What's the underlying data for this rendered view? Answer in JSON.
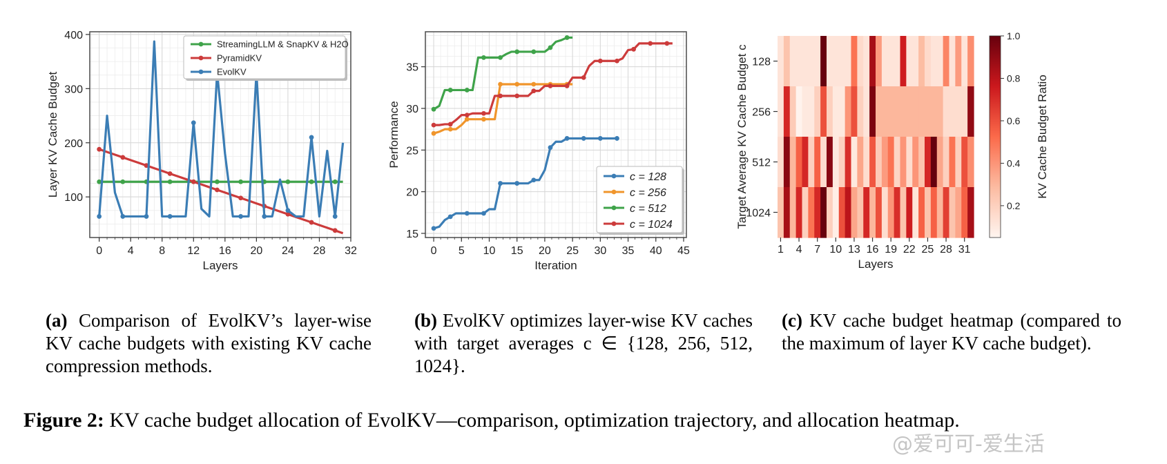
{
  "chart_data": [
    {
      "id": "a",
      "type": "line",
      "xlabel": "Layers",
      "ylabel": "Layer KV Cache Budget",
      "xlim": [
        -1.2,
        32
      ],
      "ylim": [
        25,
        405
      ],
      "xticks": [
        0,
        4,
        8,
        12,
        16,
        20,
        24,
        28,
        32
      ],
      "yticks": [
        100,
        200,
        300,
        400
      ],
      "grid": true,
      "legend_position": "top-right",
      "series": [
        {
          "name": "StreamingLLM & SnapKV & H2O",
          "color": "#3fa34a",
          "x": [
            0,
            1,
            2,
            3,
            4,
            5,
            6,
            7,
            8,
            9,
            10,
            11,
            12,
            13,
            14,
            15,
            16,
            17,
            18,
            19,
            20,
            21,
            22,
            23,
            24,
            25,
            26,
            27,
            28,
            29,
            30,
            31
          ],
          "values": [
            128,
            128,
            128,
            128,
            128,
            128,
            128,
            128,
            128,
            128,
            128,
            128,
            128,
            128,
            128,
            128,
            128,
            128,
            128,
            128,
            128,
            128,
            128,
            128,
            128,
            128,
            128,
            128,
            128,
            128,
            128,
            128
          ],
          "markers_at": [
            0,
            3,
            6,
            9,
            12,
            15,
            18,
            21,
            24,
            27,
            30
          ]
        },
        {
          "name": "PyramidKV",
          "color": "#cc3b3b",
          "x": [
            0,
            1,
            2,
            3,
            4,
            5,
            6,
            7,
            8,
            9,
            10,
            11,
            12,
            13,
            14,
            15,
            16,
            17,
            18,
            19,
            20,
            21,
            22,
            23,
            24,
            25,
            26,
            27,
            28,
            29,
            30,
            31
          ],
          "values": [
            188,
            183,
            178,
            173,
            168,
            163,
            158,
            153,
            148,
            143,
            138,
            133,
            128,
            123,
            118,
            113,
            108,
            103,
            98,
            93,
            88,
            83,
            78,
            73,
            68,
            63,
            58,
            53,
            48,
            43,
            38,
            33
          ],
          "markers_at": [
            0,
            3,
            6,
            9,
            12,
            15,
            18,
            21,
            24,
            27,
            30
          ]
        },
        {
          "name": "EvolKV",
          "color": "#3b7db5",
          "x": [
            0,
            1,
            2,
            3,
            4,
            5,
            6,
            7,
            8,
            9,
            10,
            11,
            12,
            13,
            14,
            15,
            16,
            17,
            18,
            19,
            20,
            21,
            22,
            23,
            24,
            25,
            26,
            27,
            28,
            29,
            30,
            31
          ],
          "values": [
            64,
            250,
            108,
            64,
            64,
            64,
            64,
            387,
            64,
            64,
            64,
            64,
            237,
            78,
            64,
            330,
            180,
            64,
            64,
            64,
            330,
            64,
            64,
            132,
            75,
            64,
            64,
            210,
            64,
            185,
            64,
            200
          ],
          "markers_at": [
            0,
            3,
            6,
            9,
            12,
            15,
            18,
            21,
            24,
            27,
            30
          ]
        }
      ]
    },
    {
      "id": "b",
      "type": "line",
      "xlabel": "Iteration",
      "ylabel": "Performance",
      "xlim": [
        -1.5,
        45.5
      ],
      "ylim": [
        14.5,
        39.2
      ],
      "xticks": [
        0,
        5,
        10,
        15,
        20,
        25,
        30,
        35,
        40,
        45
      ],
      "yticks": [
        15,
        20,
        25,
        30,
        35
      ],
      "grid": true,
      "legend_position": "bottom-right",
      "series": [
        {
          "name": "c = 128",
          "color": "#3b7db5",
          "x": [
            0,
            1,
            2,
            3,
            4,
            5,
            6,
            7,
            8,
            9,
            10,
            11,
            12,
            13,
            14,
            15,
            16,
            17,
            18,
            19,
            20,
            21,
            22,
            23,
            24,
            25,
            26,
            27,
            28,
            29,
            30,
            31,
            32,
            33
          ],
          "values": [
            15.6,
            15.8,
            16.6,
            17.0,
            17.4,
            17.4,
            17.4,
            17.4,
            17.4,
            17.4,
            17.9,
            17.9,
            21.0,
            21.0,
            21.0,
            21.0,
            21.0,
            21.0,
            21.4,
            21.4,
            22.6,
            25.3,
            26.0,
            26.0,
            26.4,
            26.4,
            26.4,
            26.4,
            26.4,
            26.4,
            26.4,
            26.4,
            26.4,
            26.4
          ],
          "markers_at": [
            0,
            3,
            6,
            9,
            12,
            15,
            18,
            21,
            24,
            27,
            30,
            33
          ]
        },
        {
          "name": "c = 256",
          "color": "#f0952b",
          "x": [
            0,
            1,
            2,
            3,
            4,
            5,
            6,
            7,
            8,
            9,
            10,
            11,
            12,
            13,
            14,
            15,
            16,
            17,
            18,
            19,
            20,
            21,
            22,
            23,
            24,
            25
          ],
          "values": [
            27.0,
            27.2,
            27.5,
            27.5,
            27.5,
            28.0,
            28.7,
            28.7,
            28.7,
            28.7,
            28.7,
            28.7,
            32.9,
            32.9,
            32.9,
            32.9,
            32.9,
            32.9,
            32.9,
            32.9,
            32.9,
            32.9,
            32.9,
            32.9,
            32.9,
            32.9
          ],
          "markers_at": [
            0,
            3,
            6,
            9,
            12,
            15,
            18,
            21,
            24
          ]
        },
        {
          "name": "c = 512",
          "color": "#3fa34a",
          "x": [
            0,
            1,
            2,
            3,
            4,
            5,
            6,
            7,
            8,
            9,
            10,
            11,
            12,
            13,
            14,
            15,
            16,
            17,
            18,
            19,
            20,
            21,
            22,
            23,
            24,
            25
          ],
          "values": [
            29.9,
            30.3,
            32.2,
            32.2,
            32.2,
            32.2,
            32.2,
            32.2,
            36.1,
            36.1,
            36.1,
            36.1,
            36.1,
            36.5,
            36.8,
            36.8,
            36.8,
            36.8,
            36.8,
            36.8,
            36.8,
            37.3,
            38.0,
            38.2,
            38.5,
            38.5
          ],
          "markers_at": [
            0,
            3,
            6,
            9,
            12,
            15,
            18,
            21,
            24
          ]
        },
        {
          "name": "c = 1024",
          "color": "#cc3b3b",
          "x": [
            0,
            1,
            2,
            3,
            4,
            5,
            6,
            7,
            8,
            9,
            10,
            11,
            12,
            13,
            14,
            15,
            16,
            17,
            18,
            19,
            20,
            21,
            22,
            23,
            24,
            25,
            26,
            27,
            28,
            29,
            30,
            31,
            32,
            33,
            34,
            35,
            36,
            37,
            38,
            39,
            40,
            41,
            42,
            43
          ],
          "values": [
            28.0,
            28.0,
            28.1,
            28.1,
            28.6,
            29.2,
            29.2,
            29.4,
            29.4,
            29.4,
            29.4,
            31.5,
            31.5,
            31.5,
            31.5,
            31.5,
            31.5,
            31.5,
            32.1,
            32.1,
            32.7,
            32.7,
            32.7,
            32.7,
            32.7,
            33.7,
            33.7,
            33.7,
            35.1,
            35.7,
            35.7,
            35.7,
            35.7,
            35.7,
            36.0,
            37.0,
            37.1,
            37.8,
            37.8,
            37.8,
            37.8,
            37.8,
            37.8,
            37.8
          ],
          "markers_at": [
            0,
            3,
            6,
            9,
            12,
            15,
            18,
            21,
            24,
            27,
            30,
            33,
            36,
            39,
            42
          ]
        }
      ]
    },
    {
      "id": "c",
      "type": "heatmap",
      "xlabel": "Layers",
      "ylabel": "Target Average KV Cache Budget c",
      "colorbar_label": "KV Cache Budget Ratio",
      "colorbar_ticks": [
        "0.2",
        "0.4",
        "0.6",
        "0.8",
        "1.0"
      ],
      "colorbar_range": [
        0.05,
        1.0
      ],
      "x_ticklabels": [
        "1",
        "4",
        "7",
        "10",
        "13",
        "16",
        "19",
        "22",
        "25",
        "28",
        "31"
      ],
      "x_tick_layers": [
        1,
        4,
        7,
        10,
        13,
        16,
        19,
        22,
        25,
        28,
        31
      ],
      "y_ticklabels": [
        "128",
        "256",
        "512",
        "1024"
      ],
      "colormap": [
        "#fff5f0",
        "#fcbba1",
        "#fb6a4a",
        "#cb181d",
        "#67000d"
      ],
      "rows": [
        [
          0.12,
          0.25,
          0.12,
          0.12,
          0.12,
          0.12,
          0.12,
          1.0,
          0.12,
          0.12,
          0.12,
          0.12,
          0.5,
          0.16,
          0.12,
          0.85,
          0.38,
          0.12,
          0.12,
          0.12,
          0.75,
          0.12,
          0.12,
          0.28,
          0.16,
          0.12,
          0.12,
          0.45,
          0.12,
          0.38,
          0.12,
          0.42
        ],
        [
          0.12,
          0.72,
          0.22,
          0.06,
          0.1,
          0.1,
          0.2,
          0.6,
          0.2,
          0.1,
          0.1,
          0.4,
          0.6,
          0.2,
          0.12,
          0.95,
          0.3,
          0.3,
          0.3,
          0.3,
          0.3,
          0.3,
          0.3,
          0.3,
          0.3,
          0.3,
          0.3,
          0.15,
          0.15,
          0.15,
          0.15,
          0.9
        ],
        [
          0.15,
          0.92,
          0.3,
          0.55,
          0.72,
          0.2,
          0.55,
          0.15,
          0.92,
          0.1,
          0.2,
          0.7,
          0.1,
          0.35,
          0.15,
          0.58,
          0.22,
          0.38,
          0.5,
          0.18,
          0.4,
          0.15,
          0.4,
          0.25,
          0.72,
          1.0,
          0.35,
          0.2,
          0.5,
          0.2,
          0.6,
          0.42
        ],
        [
          0.25,
          0.85,
          0.3,
          0.72,
          0.2,
          0.5,
          0.72,
          1.0,
          0.2,
          0.08,
          0.6,
          0.8,
          0.35,
          0.25,
          0.72,
          0.3,
          0.6,
          0.15,
          0.4,
          0.7,
          0.25,
          0.75,
          0.12,
          0.55,
          0.25,
          0.55,
          0.3,
          0.65,
          0.25,
          0.35,
          0.55,
          0.85
        ]
      ]
    }
  ],
  "captions": {
    "a_label": "(a)",
    "a_text": " Comparison of EvolKV’s layer-wise KV cache budgets with existing KV cache compression methods.",
    "b_label": "(b)",
    "b_text": " EvolKV optimizes layer-wise KV caches with target averages c ∈ {128, 256, 512, 1024}.",
    "c_label": "(c)",
    "c_text": " KV cache budget heatmap (compared to the maximum of layer KV cache budget).",
    "figure_label": "Figure 2:",
    "figure_text": " KV cache budget allocation of EvolKV—comparison, optimization trajectory, and allocation heatmap."
  },
  "watermark": "@爱可可-爱生活"
}
